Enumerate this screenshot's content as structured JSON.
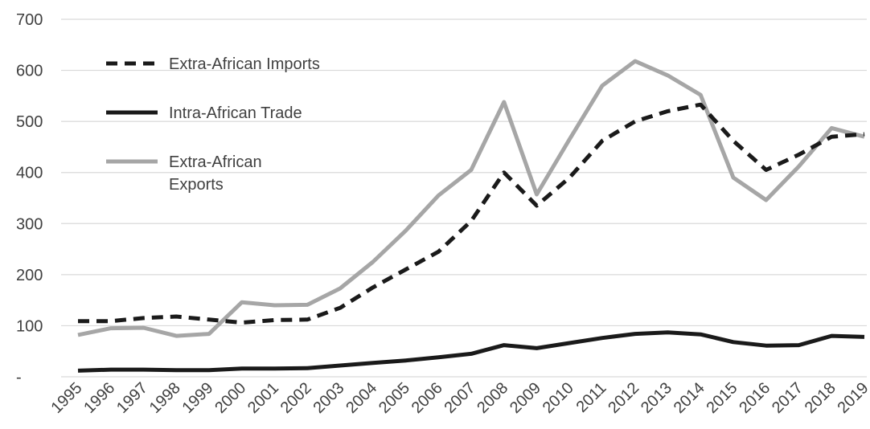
{
  "chart_data": {
    "type": "line",
    "title": "",
    "xlabel": "",
    "ylabel": "",
    "x": [
      "1995",
      "1996",
      "1997",
      "1998",
      "1999",
      "2000",
      "2001",
      "2002",
      "2003",
      "2004",
      "2005",
      "2006",
      "2007",
      "2008",
      "2009",
      "2010",
      "2011",
      "2012",
      "2013",
      "2014",
      "2015",
      "2016",
      "2017",
      "2018",
      "2019"
    ],
    "ylim": [
      0,
      700
    ],
    "yticks": [
      0,
      100,
      200,
      300,
      400,
      500,
      600,
      700
    ],
    "ytick_labels": [
      "-",
      "100",
      "200",
      "300",
      "400",
      "500",
      "600",
      "700"
    ],
    "grid": true,
    "legend_position": "top-left",
    "series": [
      {
        "name": "Extra-African Imports",
        "style": "dashed",
        "color": "#1a1a1a",
        "values": [
          109,
          109,
          115,
          118,
          112,
          106,
          111,
          112,
          135,
          175,
          210,
          245,
          305,
          400,
          335,
          390,
          462,
          500,
          520,
          533,
          462,
          405,
          435,
          470,
          475
        ]
      },
      {
        "name": "Intra-African Trade",
        "style": "solid",
        "color": "#1a1a1a",
        "values": [
          12,
          14,
          14,
          13,
          13,
          16,
          16,
          17,
          22,
          27,
          32,
          38,
          45,
          62,
          56,
          66,
          76,
          84,
          87,
          83,
          68,
          61,
          62,
          80,
          78
        ]
      },
      {
        "name": "Extra-African\nExports",
        "name_lines": [
          "Extra-African",
          "Exports"
        ],
        "style": "solid",
        "color": "#a6a6a6",
        "values": [
          82,
          95,
          96,
          80,
          84,
          146,
          140,
          141,
          173,
          225,
          286,
          355,
          405,
          538,
          357,
          465,
          570,
          618,
          590,
          552,
          390,
          346,
          412,
          487,
          470
        ]
      }
    ]
  }
}
